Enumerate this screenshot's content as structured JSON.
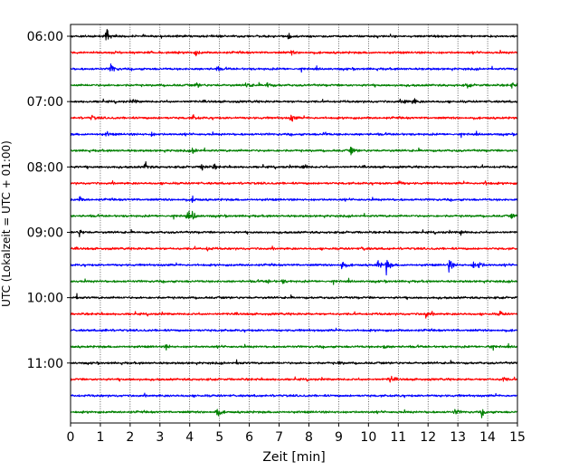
{
  "chart_data": {
    "type": "line",
    "title": "",
    "xlabel": "Zeit  [min]",
    "ylabel": "UTC (Lokalzeit = UTC + 01:00)",
    "xlim": [
      0,
      15
    ],
    "x_ticks": [
      0,
      1,
      2,
      3,
      4,
      5,
      6,
      7,
      8,
      9,
      10,
      11,
      12,
      13,
      14,
      15
    ],
    "grid": "vertical dotted at each minute",
    "trace_colors": [
      "#000000",
      "#ff0000",
      "#0000ff",
      "#008000"
    ],
    "trace_interval_min": 15,
    "y_tick_labels": [
      "06:00",
      "07:00",
      "08:00",
      "09:00",
      "10:00",
      "11:00"
    ],
    "traces": [
      {
        "start": "06:00",
        "color": "#000000",
        "events": [
          [
            1.2,
            1.0
          ],
          [
            7.3,
            0.4
          ]
        ]
      },
      {
        "start": "06:15",
        "color": "#ff0000",
        "events": [
          [
            4.2,
            0.3
          ],
          [
            7.4,
            0.25
          ]
        ]
      },
      {
        "start": "06:30",
        "color": "#0000ff",
        "events": [
          [
            1.35,
            0.8
          ],
          [
            4.9,
            0.25
          ]
        ]
      },
      {
        "start": "06:45",
        "color": "#008000",
        "events": [
          [
            4.2,
            0.35
          ],
          [
            5.9,
            0.45
          ],
          [
            6.6,
            0.45
          ],
          [
            13.3,
            0.3
          ],
          [
            14.8,
            0.3
          ]
        ]
      },
      {
        "start": "07:00",
        "color": "#000000",
        "events": [
          [
            2.1,
            0.25
          ],
          [
            11.2,
            0.4
          ],
          [
            11.5,
            0.45
          ]
        ]
      },
      {
        "start": "07:15",
        "color": "#ff0000",
        "events": [
          [
            0.7,
            0.3
          ],
          [
            4.1,
            0.3
          ],
          [
            7.4,
            0.6
          ]
        ]
      },
      {
        "start": "07:30",
        "color": "#0000ff",
        "events": [
          [
            1.2,
            0.25
          ],
          [
            2.7,
            0.25
          ],
          [
            8.5,
            0.25
          ]
        ]
      },
      {
        "start": "07:45",
        "color": "#008000",
        "events": [
          [
            4.1,
            0.6
          ],
          [
            9.4,
            0.55
          ]
        ]
      },
      {
        "start": "08:00",
        "color": "#000000",
        "events": [
          [
            2.5,
            0.6
          ],
          [
            4.4,
            0.55
          ],
          [
            4.8,
            0.3
          ],
          [
            7.8,
            0.5
          ]
        ]
      },
      {
        "start": "08:15",
        "color": "#ff0000",
        "events": [
          [
            11.0,
            0.35
          ],
          [
            13.9,
            0.4
          ]
        ]
      },
      {
        "start": "08:30",
        "color": "#0000ff",
        "events": [
          [
            0.3,
            0.3
          ],
          [
            4.1,
            0.3
          ]
        ]
      },
      {
        "start": "08:45",
        "color": "#008000",
        "events": [
          [
            3.9,
            0.4
          ],
          [
            4.1,
            0.55
          ],
          [
            14.8,
            0.3
          ]
        ]
      },
      {
        "start": "09:00",
        "color": "#000000",
        "events": [
          [
            0.3,
            0.4
          ],
          [
            13.1,
            0.3
          ]
        ]
      },
      {
        "start": "09:15",
        "color": "#ff0000",
        "events": [
          [
            4.6,
            0.25
          ],
          [
            9.8,
            0.25
          ]
        ]
      },
      {
        "start": "09:30",
        "color": "#0000ff",
        "events": [
          [
            9.1,
            0.65
          ],
          [
            10.3,
            0.6
          ],
          [
            10.6,
            0.9
          ],
          [
            12.7,
            0.85
          ],
          [
            13.5,
            0.6
          ],
          [
            13.7,
            0.5
          ]
        ]
      },
      {
        "start": "09:45",
        "color": "#008000",
        "events": [
          [
            6.6,
            0.3
          ],
          [
            7.1,
            0.25
          ]
        ]
      },
      {
        "start": "10:00",
        "color": "#000000",
        "events": [
          [
            0.2,
            0.2
          ]
        ]
      },
      {
        "start": "10:15",
        "color": "#ff0000",
        "events": [
          [
            11.9,
            0.55
          ],
          [
            14.4,
            0.35
          ]
        ]
      },
      {
        "start": "10:30",
        "color": "#0000ff",
        "events": [
          [
            1.1,
            0.2
          ]
        ]
      },
      {
        "start": "10:45",
        "color": "#008000",
        "events": [
          [
            3.2,
            0.3
          ],
          [
            10.5,
            0.3
          ],
          [
            14.0,
            0.3
          ]
        ]
      },
      {
        "start": "11:00",
        "color": "#000000",
        "events": [
          [
            5.6,
            0.25
          ],
          [
            9.0,
            0.2
          ]
        ]
      },
      {
        "start": "11:15",
        "color": "#ff0000",
        "events": [
          [
            10.7,
            0.55
          ],
          [
            14.5,
            0.35
          ]
        ]
      },
      {
        "start": "11:30",
        "color": "#0000ff",
        "events": []
      },
      {
        "start": "11:45",
        "color": "#008000",
        "events": [
          [
            4.9,
            0.85
          ],
          [
            12.9,
            0.4
          ],
          [
            13.8,
            0.45
          ]
        ]
      }
    ]
  }
}
